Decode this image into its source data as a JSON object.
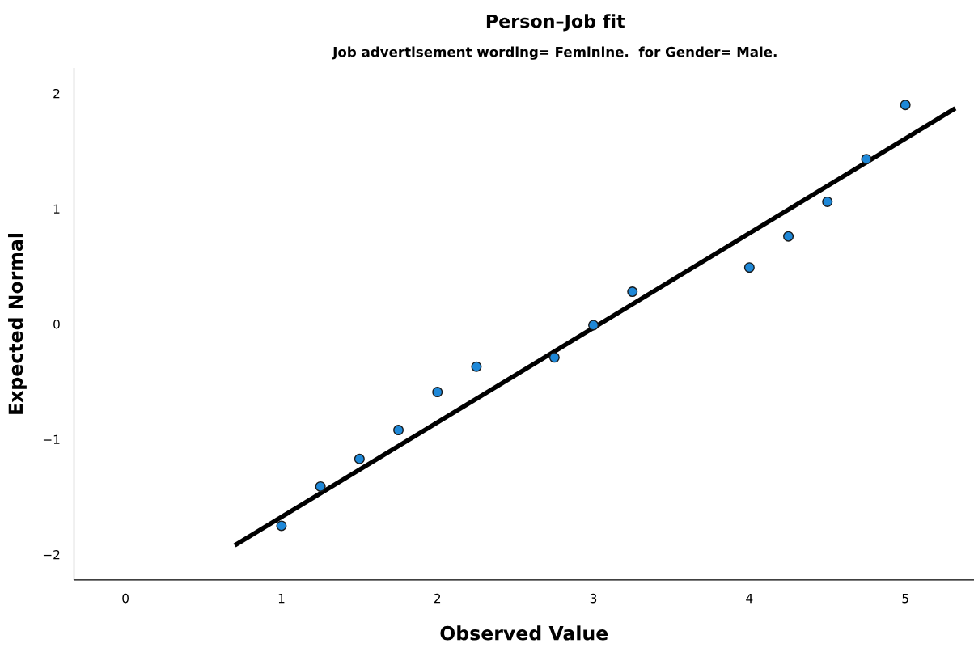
{
  "chart_data": {
    "type": "scatter",
    "title": "Person–Job fit",
    "subtitle": "Job advertisement wording= Feminine.  for Gender= Male.",
    "xlabel": "Observed Value",
    "ylabel": "Expected Normal",
    "x": [
      1,
      1.25,
      1.5,
      1.75,
      2,
      2.25,
      2.75,
      3,
      3.25,
      4,
      4.25,
      4.5,
      4.75,
      5
    ],
    "series": [
      {
        "color": "#1e88d8",
        "marker": "circle",
        "values": [
          -1.75,
          -1.41,
          -1.17,
          -0.92,
          -0.59,
          -0.37,
          -0.29,
          -0.01,
          0.28,
          0.49,
          0.76,
          1.06,
          1.43,
          1.9
        ]
      },
      {
        "type": "line",
        "color": "#000000",
        "line_style": "solid",
        "marker": "none",
        "x": [
          0.7,
          5.32
        ],
        "values": [
          -1.92,
          1.87
        ]
      }
    ],
    "xlim": [
      -0.33,
      5.44
    ],
    "ylim": [
      -2.22,
      2.22
    ],
    "xticks": [
      0,
      1,
      2,
      3,
      4,
      5
    ],
    "yticks": [
      {
        "value": -2,
        "label": "−2"
      },
      {
        "value": -1,
        "label": "−1"
      },
      0,
      1,
      2
    ],
    "grid": false,
    "legend": false
  }
}
